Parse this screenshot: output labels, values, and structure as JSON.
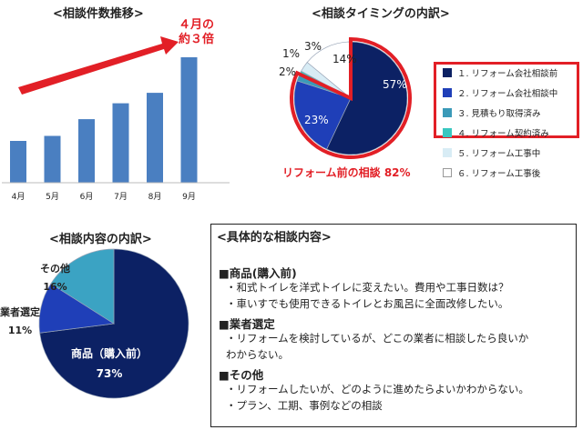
{
  "chart_data": [
    {
      "type": "bar",
      "title": "<相談件数推移>",
      "categories": [
        "4月",
        "5月",
        "6月",
        "7月",
        "8月",
        "9月"
      ],
      "values": [
        1.0,
        1.12,
        1.52,
        1.9,
        2.15,
        3.0
      ],
      "color": "#4a7fc1",
      "annotation": {
        "line1": "４月の",
        "line2": "約３倍",
        "color": "#e21f26"
      },
      "grid": false
    },
    {
      "type": "pie",
      "title": "<相談タイミングの内訳>",
      "slices": [
        {
          "label": "１. リフォーム会社相談前",
          "value": 57,
          "color": "#0c2164",
          "text": "57%"
        },
        {
          "label": "２. リフォーム会社相談中",
          "value": 23,
          "color": "#1f3fb8",
          "text": "23%"
        },
        {
          "label": "３. 見積もり取得済み",
          "value": 2,
          "color": "#3b9ab8",
          "text": "2%"
        },
        {
          "label": "４. リフォーム契約済み",
          "value": 1,
          "color": "#38c7c0",
          "text": "1%"
        },
        {
          "label": "５. リフォーム工事中",
          "value": 3,
          "color": "#d8ecf5",
          "text": "3%"
        },
        {
          "label": "６. リフォーム工事後",
          "value": 14,
          "color": "#ffffff",
          "text": "14%"
        }
      ],
      "highlight_caption": "リフォーム前の相談 82%",
      "highlight_color": "#e21f26",
      "legend_placement": "right"
    },
    {
      "type": "pie",
      "title": "<相談内容の内訳>",
      "slices": [
        {
          "label": "商品（購入前）",
          "value": 73,
          "color": "#0c2164",
          "text": "73%"
        },
        {
          "label": "業者選定",
          "value": 11,
          "color": "#1f3fb8",
          "text": "11%"
        },
        {
          "label": "その他",
          "value": 16,
          "color": "#3ba3c3",
          "text": "16%"
        }
      ]
    }
  ],
  "details": {
    "title": "<具体的な相談内容>",
    "sections": [
      {
        "heading": "■商品(購入前)",
        "items": [
          "・和式トイレを洋式トイレに変えたい。費用や工事日数は？",
          "・車いすでも使用できるトイレとお風呂に全面改修したい。"
        ]
      },
      {
        "heading": "■業者選定",
        "items": [
          "・リフォームを検討しているが、どこの業者に相談したら良いか",
          "  わからない。"
        ]
      },
      {
        "heading": "■その他",
        "items": [
          "・リフォームしたいが、どのように進めたらよいかわからない。",
          "・プラン、工期、事例などの相談"
        ]
      }
    ]
  }
}
